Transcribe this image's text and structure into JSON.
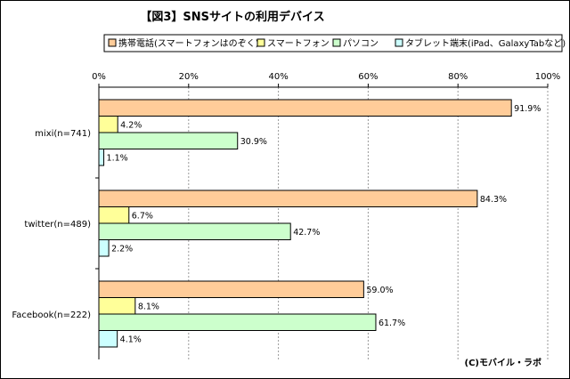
{
  "chart_data": {
    "type": "bar",
    "orientation": "horizontal",
    "title": "【図3】SNSサイトの利用デバイス",
    "categories": [
      "mixi(n=741)",
      "twitter(n=489)",
      "Facebook(n=222)"
    ],
    "series": [
      {
        "name": "携帯電話(スマートフォンはのぞく)",
        "color": "#FFCC99",
        "values": [
          91.9,
          84.3,
          59.0
        ],
        "labels": [
          "91.9%",
          "84.3%",
          "59.0%"
        ]
      },
      {
        "name": "スマートフォン",
        "color": "#FFFF99",
        "values": [
          4.2,
          6.7,
          8.1
        ],
        "labels": [
          "4.2%",
          "6.7%",
          "8.1%"
        ]
      },
      {
        "name": "パソコン",
        "color": "#CCFFCC",
        "values": [
          30.9,
          42.7,
          61.7
        ],
        "labels": [
          "30.9%",
          "42.7%",
          "61.7%"
        ]
      },
      {
        "name": "タブレット端末(iPad、GalaxyTabなど)",
        "color": "#CCFFFF",
        "values": [
          1.1,
          2.2,
          4.1
        ],
        "labels": [
          "1.1%",
          "2.2%",
          "4.1%"
        ]
      }
    ],
    "xlim": [
      0,
      100
    ],
    "ticks": [
      0,
      20,
      40,
      60,
      80,
      100
    ],
    "tick_labels": [
      "0%",
      "20%",
      "40%",
      "60%",
      "80%",
      "100%"
    ],
    "legend_position": "top",
    "grid": true,
    "credit": "(C)モバイル・ラボ"
  }
}
